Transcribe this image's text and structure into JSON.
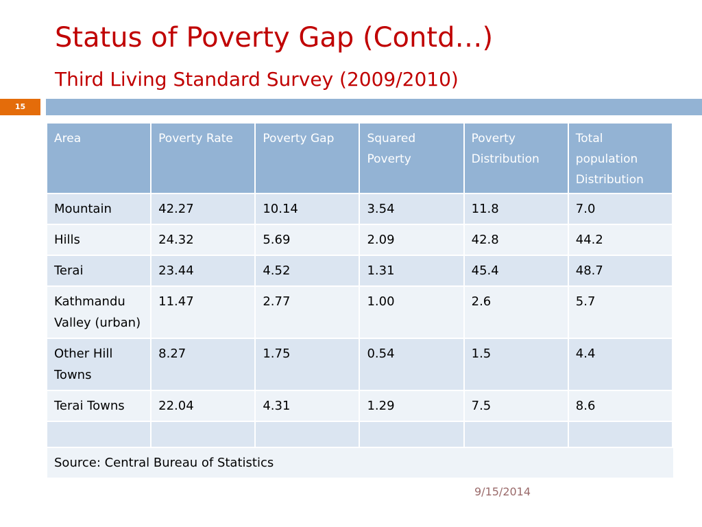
{
  "slide": {
    "title": "Status of Poverty Gap (Contd…)",
    "subtitle": "Third Living Standard Survey (2009/2010)",
    "slide_number": "15",
    "date": "9/15/2014"
  },
  "table": {
    "headers": [
      "Area",
      "Poverty Rate",
      "Poverty Gap",
      "Squared Poverty",
      "Poverty Distribution",
      "Total population Distribution"
    ],
    "rows": [
      [
        "Mountain",
        "42.27",
        "10.14",
        "3.54",
        "11.8",
        "7.0"
      ],
      [
        "Hills",
        "24.32",
        "5.69",
        "2.09",
        "42.8",
        "44.2"
      ],
      [
        "Terai",
        "23.44",
        "4.52",
        "1.31",
        "45.4",
        "48.7"
      ],
      [
        "Kathmandu Valley (urban)",
        "11.47",
        "2.77",
        "1.00",
        "2.6",
        "5.7"
      ],
      [
        "Other Hill Towns",
        "8.27",
        "1.75",
        "0.54",
        "1.5",
        "4.4"
      ],
      [
        "Terai Towns",
        "22.04",
        "4.31",
        "1.29",
        "7.5",
        "8.6"
      ]
    ],
    "source": "Source: Central Bureau of Statistics"
  },
  "colors": {
    "title": "#c00000",
    "accent_bar": "#93b3d4",
    "slide_number_bg": "#e46c0a",
    "row_dark": "#dbe5f1",
    "row_light": "#eef3f8"
  }
}
